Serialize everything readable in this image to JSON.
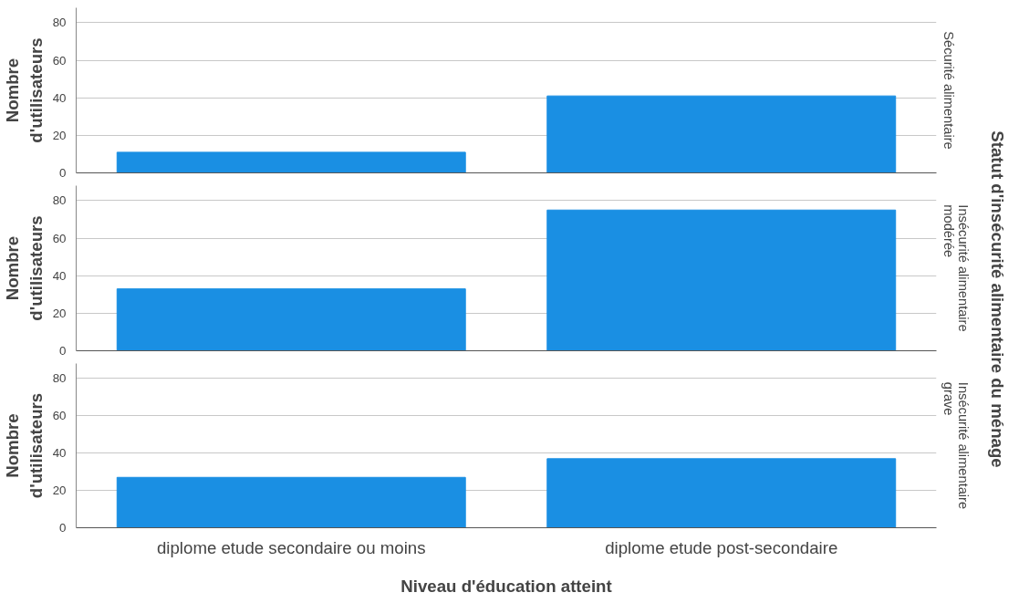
{
  "chart_data": [
    {
      "type": "bar",
      "title": "Sécurité alimentaire",
      "ylabel": "Nombre\nd'utilisateurs",
      "categories": [
        null,
        null
      ],
      "values": [
        11,
        41
      ],
      "color": "#1a8fe3",
      "ylim": [
        0,
        88
      ],
      "yticks": [
        0,
        20,
        40,
        60,
        80
      ],
      "grid": "y",
      "tick_labels": "y"
    },
    {
      "type": "bar",
      "title": "Insécurité alimentaire\nmodérée",
      "ylabel": "Nombre\nd'utilisateurs",
      "y2label": "Statut d'insécurité alimentaire du ménage",
      "categories": [
        null,
        null
      ],
      "values": [
        33,
        75
      ],
      "color": "#1a8fe3",
      "ylim": [
        0,
        88
      ],
      "yticks": [
        0,
        20,
        40,
        60,
        80
      ],
      "grid": "y",
      "tick_labels": "y"
    },
    {
      "type": "bar",
      "title": "Insécurité alimentaire\ngrave",
      "ylabel": "Nombre\nd'utilisateurs",
      "xlabel": "Niveau d'éducation atteint",
      "categories": [
        "diplome etude secondaire ou moins",
        "diplome etude post-secondaire"
      ],
      "values": [
        27,
        37
      ],
      "color": "#1a8fe3",
      "ylim": [
        0,
        88
      ],
      "yticks": [
        0,
        20,
        40,
        60,
        80
      ],
      "grid": "y"
    }
  ]
}
